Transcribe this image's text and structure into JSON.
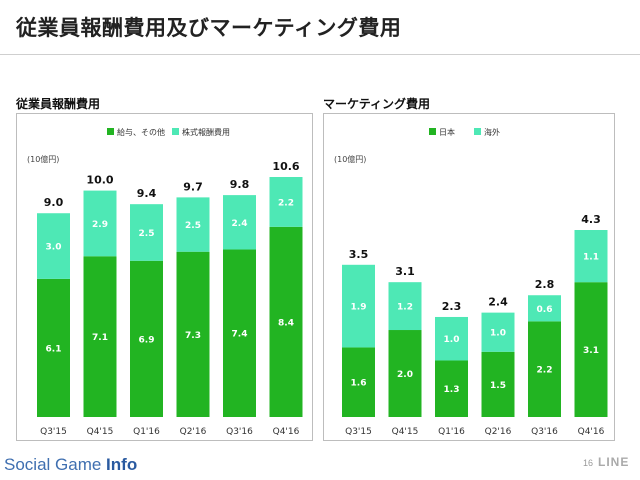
{
  "page": {
    "title": "従業員報酬費用及びマーケティング費用",
    "footer_brand_main": "Social Game ",
    "footer_brand_bold": "Info",
    "page_number": "16",
    "footer_logo": "LINE"
  },
  "colors": {
    "primary": "#22b422",
    "secondary": "#4ee8b5",
    "label_on_bar": "#ffffff"
  },
  "chart_data": [
    {
      "type": "bar",
      "stacked": true,
      "title": "従業員報酬費用",
      "unit_label": "(10億円)",
      "legend_position": "top",
      "categories": [
        "Q3'15",
        "Q4'15",
        "Q1'16",
        "Q2'16",
        "Q3'16",
        "Q4'16"
      ],
      "series": [
        {
          "name": "給与、その他",
          "color": "#22b422",
          "values": [
            6.1,
            7.1,
            6.9,
            7.3,
            7.4,
            8.4
          ]
        },
        {
          "name": "株式報酬費用",
          "color": "#4ee8b5",
          "values": [
            3.0,
            2.9,
            2.5,
            2.5,
            2.4,
            2.2
          ]
        }
      ],
      "totals": [
        9.0,
        10.0,
        9.4,
        9.7,
        9.8,
        10.6
      ],
      "ylim": [
        0,
        10.6
      ]
    },
    {
      "type": "bar",
      "stacked": true,
      "title": "マーケティング費用",
      "unit_label": "(10億円)",
      "legend_position": "top",
      "categories": [
        "Q3'15",
        "Q4'15",
        "Q1'16",
        "Q2'16",
        "Q3'16",
        "Q4'16"
      ],
      "series": [
        {
          "name": "日本",
          "color": "#22b422",
          "values": [
            1.6,
            2.0,
            1.3,
            1.5,
            2.2,
            3.1
          ]
        },
        {
          "name": "海外",
          "color": "#4ee8b5",
          "values": [
            1.9,
            1.2,
            1.0,
            1.0,
            0.6,
            1.1
          ]
        }
      ],
      "totals": [
        3.5,
        3.1,
        2.3,
        2.4,
        2.8,
        4.3
      ],
      "ylim": [
        0,
        4.3
      ]
    }
  ]
}
